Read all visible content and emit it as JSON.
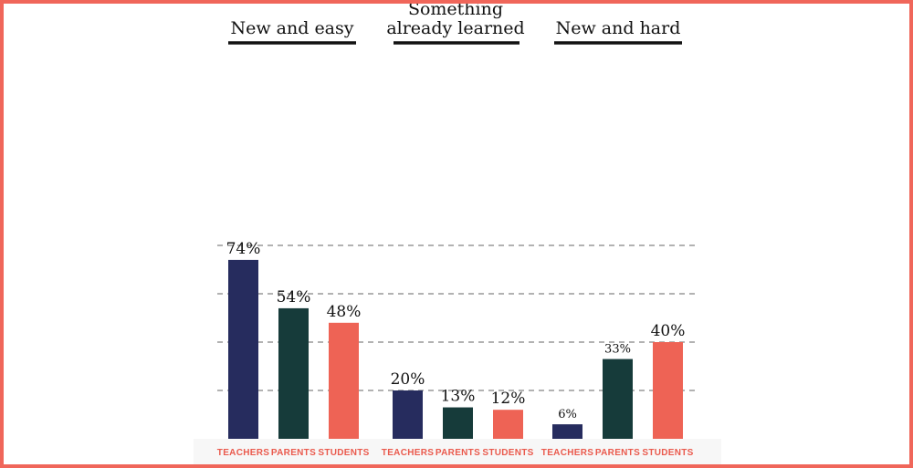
{
  "colors": {
    "frame": "#f0665a",
    "TEACHERS": "#262c5e",
    "PARENTS": "#163b3a",
    "STUDENTS": "#ee6355",
    "category_text": "#ea5a4d"
  },
  "chart_data": {
    "type": "bar",
    "title": "",
    "xlabel": "",
    "ylabel": "",
    "ylim": [
      0,
      80
    ],
    "grid": true,
    "legend": "none",
    "category_labels": [
      "TEACHERS",
      "PARENTS",
      "STUDENTS"
    ],
    "groups": [
      {
        "title": [
          "New and easy"
        ],
        "bars": [
          {
            "category": "TEACHERS",
            "value": 74,
            "label": "74%"
          },
          {
            "category": "PARENTS",
            "value": 54,
            "label": "54%"
          },
          {
            "category": "STUDENTS",
            "value": 48,
            "label": "48%"
          }
        ]
      },
      {
        "title": [
          "Something",
          "already learned"
        ],
        "bars": [
          {
            "category": "TEACHERS",
            "value": 20,
            "label": "20%"
          },
          {
            "category": "PARENTS",
            "value": 13,
            "label": "13%"
          },
          {
            "category": "STUDENTS",
            "value": 12,
            "label": "12%"
          }
        ]
      },
      {
        "title": [
          "New and hard"
        ],
        "bars": [
          {
            "category": "TEACHERS",
            "value": 6,
            "label": "6%"
          },
          {
            "category": "PARENTS",
            "value": 33,
            "label": "33%"
          },
          {
            "category": "STUDENTS",
            "value": 40,
            "label": "40%"
          }
        ]
      }
    ]
  }
}
